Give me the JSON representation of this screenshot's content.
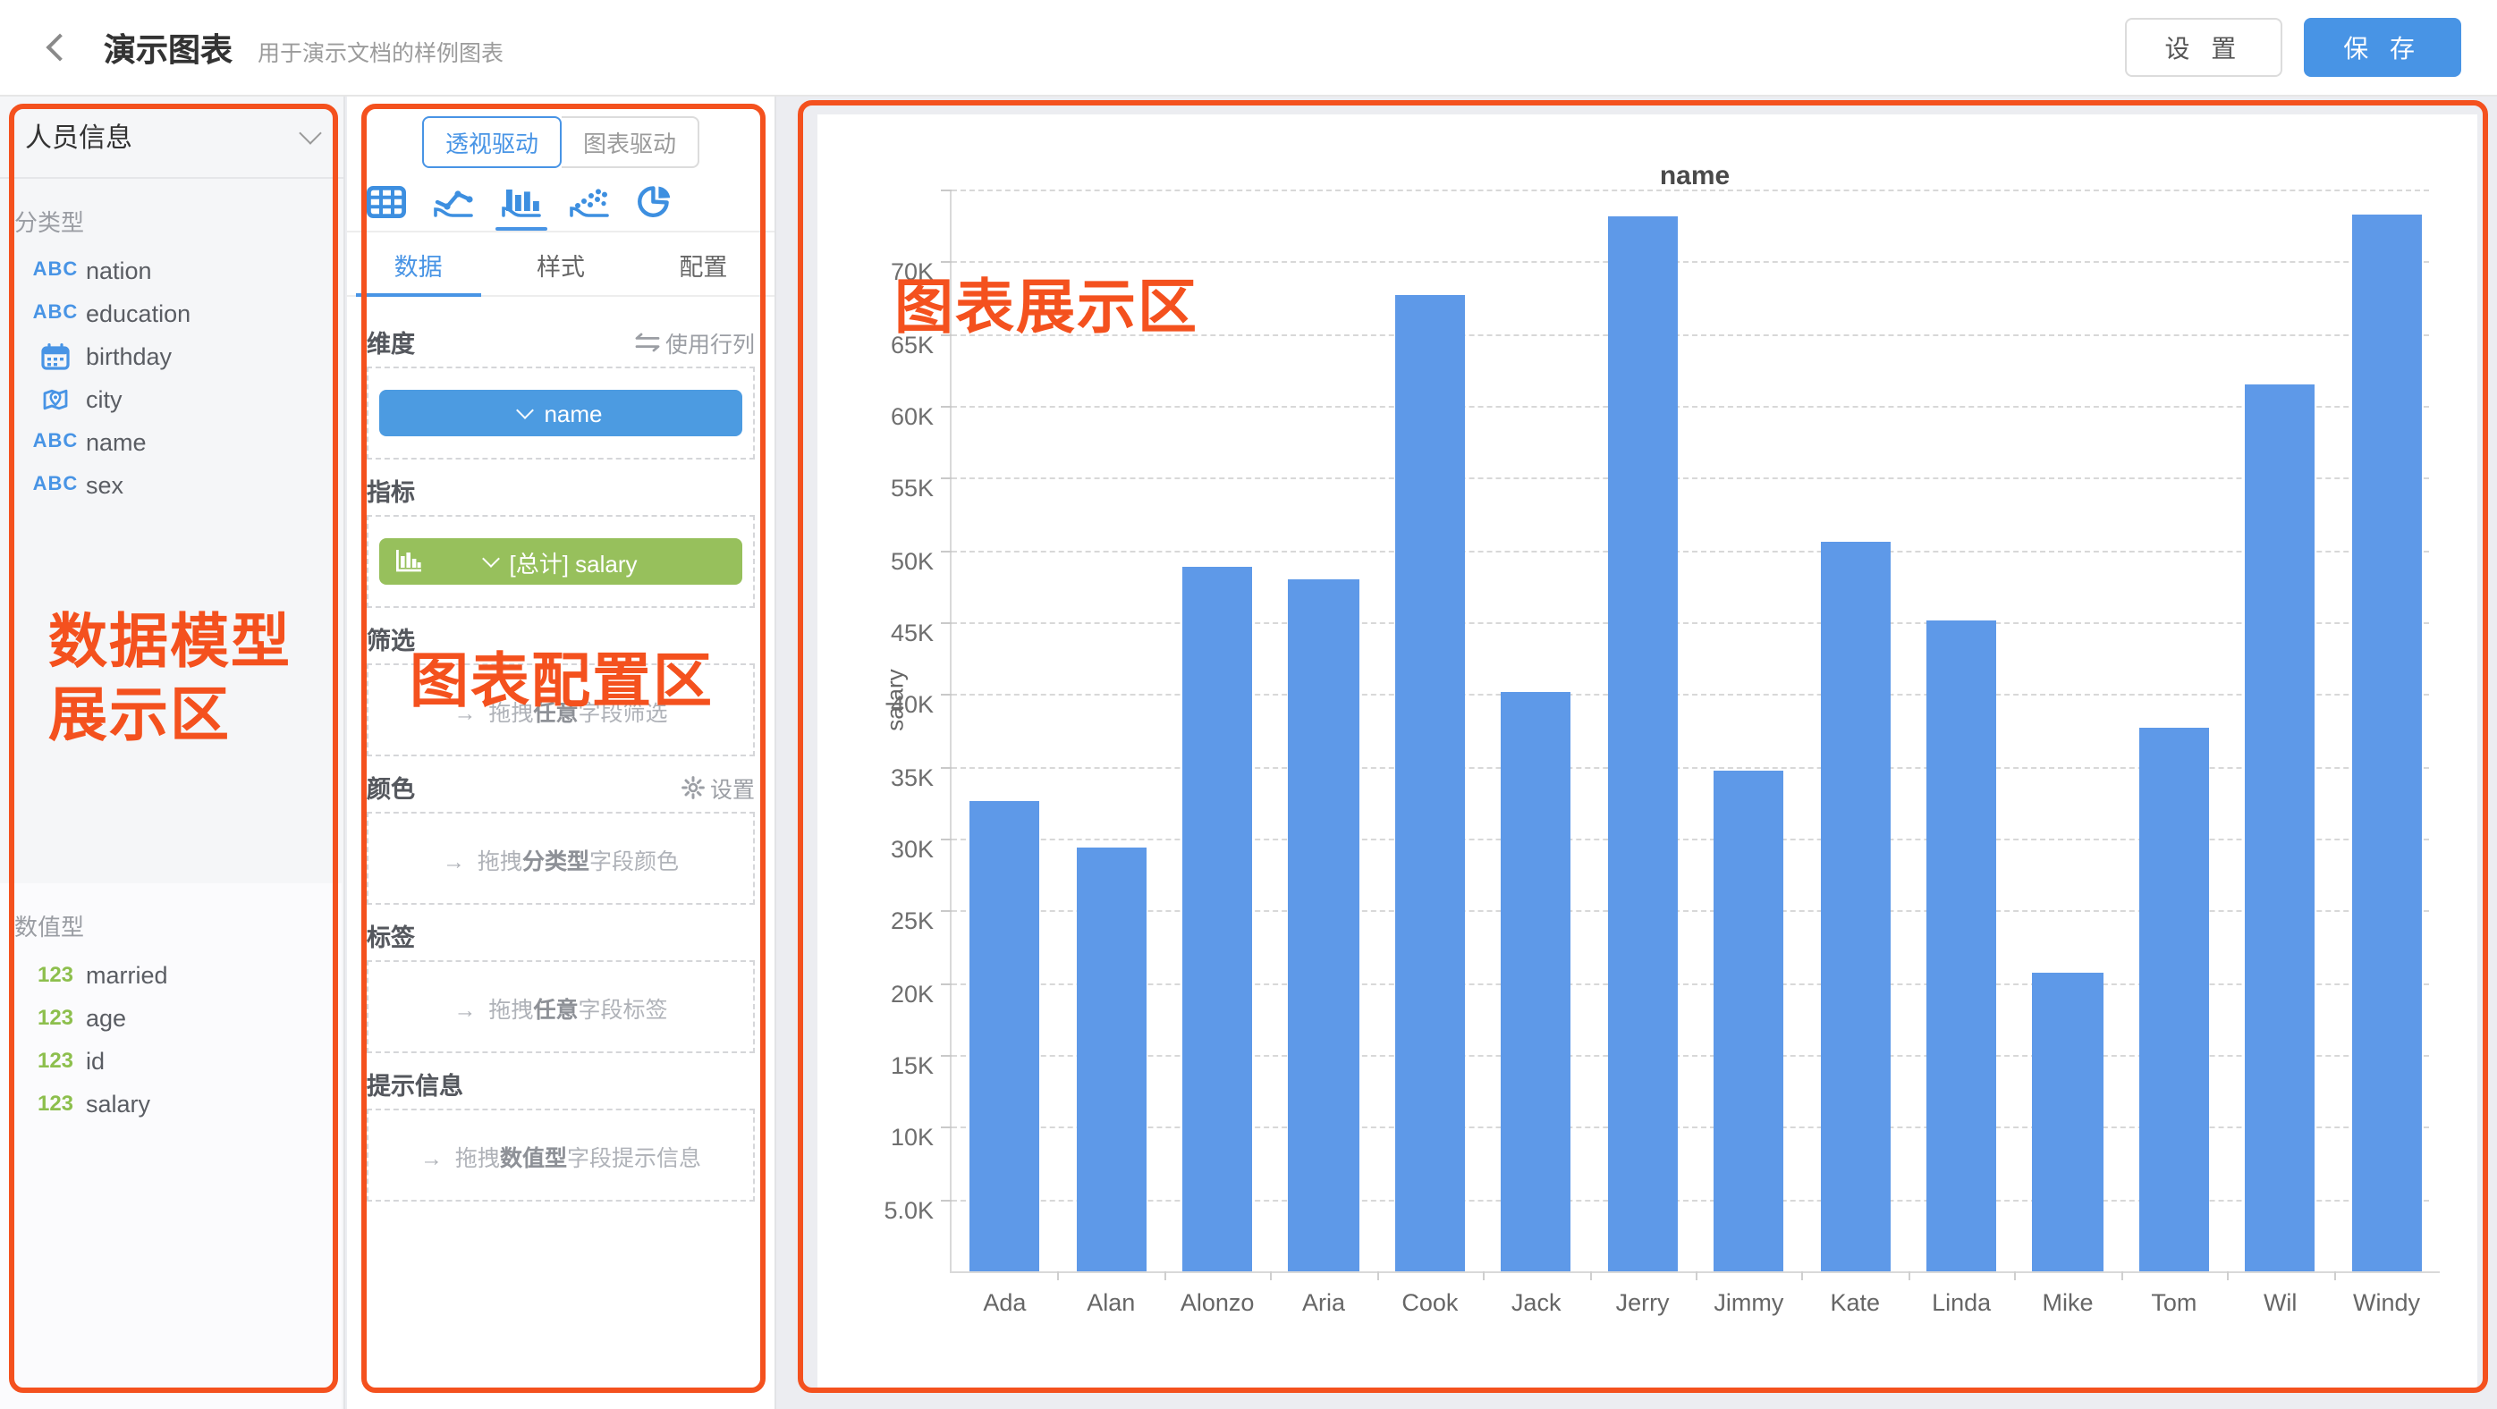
{
  "header": {
    "title": "演示图表",
    "subtitle": "用于演示文档的样例图表",
    "settings_label": "设 置",
    "save_label": "保 存",
    "accent_color": "#4894E5"
  },
  "sidebar": {
    "dataset_name": "人员信息",
    "category_section_label": "分类型",
    "category_fields": [
      {
        "icon": "abc-icon",
        "name": "nation"
      },
      {
        "icon": "abc-icon",
        "name": "education"
      },
      {
        "icon": "calendar-icon",
        "name": "birthday"
      },
      {
        "icon": "map-pin-icon",
        "name": "city"
      },
      {
        "icon": "abc-icon",
        "name": "name"
      },
      {
        "icon": "abc-icon",
        "name": "sex"
      }
    ],
    "numeric_section_label": "数值型",
    "numeric_fields": [
      {
        "icon": "123-icon",
        "name": "married"
      },
      {
        "icon": "123-icon",
        "name": "age"
      },
      {
        "icon": "123-icon",
        "name": "id"
      },
      {
        "icon": "123-icon",
        "name": "salary"
      }
    ],
    "abc_color": "#4894E5",
    "num_color": "#8DBF4D"
  },
  "config_panel": {
    "mode_tabs": [
      {
        "label": "透视驱动",
        "active": true
      },
      {
        "label": "图表驱动",
        "active": false
      }
    ],
    "chart_type_icons": [
      "table",
      "line-chart",
      "bar-chart",
      "scatter",
      "pie"
    ],
    "selected_chart_type": "bar-chart",
    "tabs": [
      {
        "label": "数据",
        "active": true
      },
      {
        "label": "样式",
        "active": false
      },
      {
        "label": "配置",
        "active": false
      }
    ],
    "dimension": {
      "label": "维度",
      "row_col_link": "使用行列",
      "chip": "name",
      "chip_color": "#4C9BE1"
    },
    "metric": {
      "label": "指标",
      "chip": "[总计] salary",
      "chip_color": "#97C05C"
    },
    "filter": {
      "label": "筛选",
      "hint_pre": "拖拽",
      "hint_bold": "任意",
      "hint_post": "字段筛选"
    },
    "color": {
      "label": "颜色",
      "settings_label": "设置",
      "hint_pre": "拖拽",
      "hint_bold": "分类型",
      "hint_post": "字段颜色"
    },
    "label_section": {
      "label": "标签",
      "hint_pre": "拖拽",
      "hint_bold": "任意",
      "hint_post": "字段标签"
    },
    "tooltip_section": {
      "label": "提示信息",
      "hint_pre": "拖拽",
      "hint_bold": "数值型",
      "hint_post": "字段提示信息"
    }
  },
  "annotations": {
    "color": "#F4511E",
    "sidebar_label_line1": "数据模型",
    "sidebar_label_line2": "展示区",
    "config_label": "图表配置区",
    "chart_label": "图表展示区"
  },
  "chart_data": {
    "type": "bar",
    "title": "name",
    "xlabel": "name",
    "ylabel": "salary",
    "categories": [
      "Ada",
      "Alan",
      "Alonzo",
      "Aria",
      "Cook",
      "Jack",
      "Jerry",
      "Jimmy",
      "Kate",
      "Linda",
      "Mike",
      "Tom",
      "Wil",
      "Windy"
    ],
    "values": [
      32600,
      29400,
      48800,
      48000,
      67700,
      40200,
      73200,
      34700,
      50600,
      45100,
      20700,
      37700,
      61500,
      73300
    ],
    "ylim": [
      0,
      75000
    ],
    "ytick_step": 5000,
    "ytick_labels": [
      "5.0K",
      "10K",
      "15K",
      "20K",
      "25K",
      "30K",
      "35K",
      "40K",
      "45K",
      "50K",
      "55K",
      "60K",
      "65K",
      "70K"
    ],
    "grid": true,
    "grid_style": "dashed",
    "legend_position": "none",
    "bar_color": "#5E99E8"
  }
}
